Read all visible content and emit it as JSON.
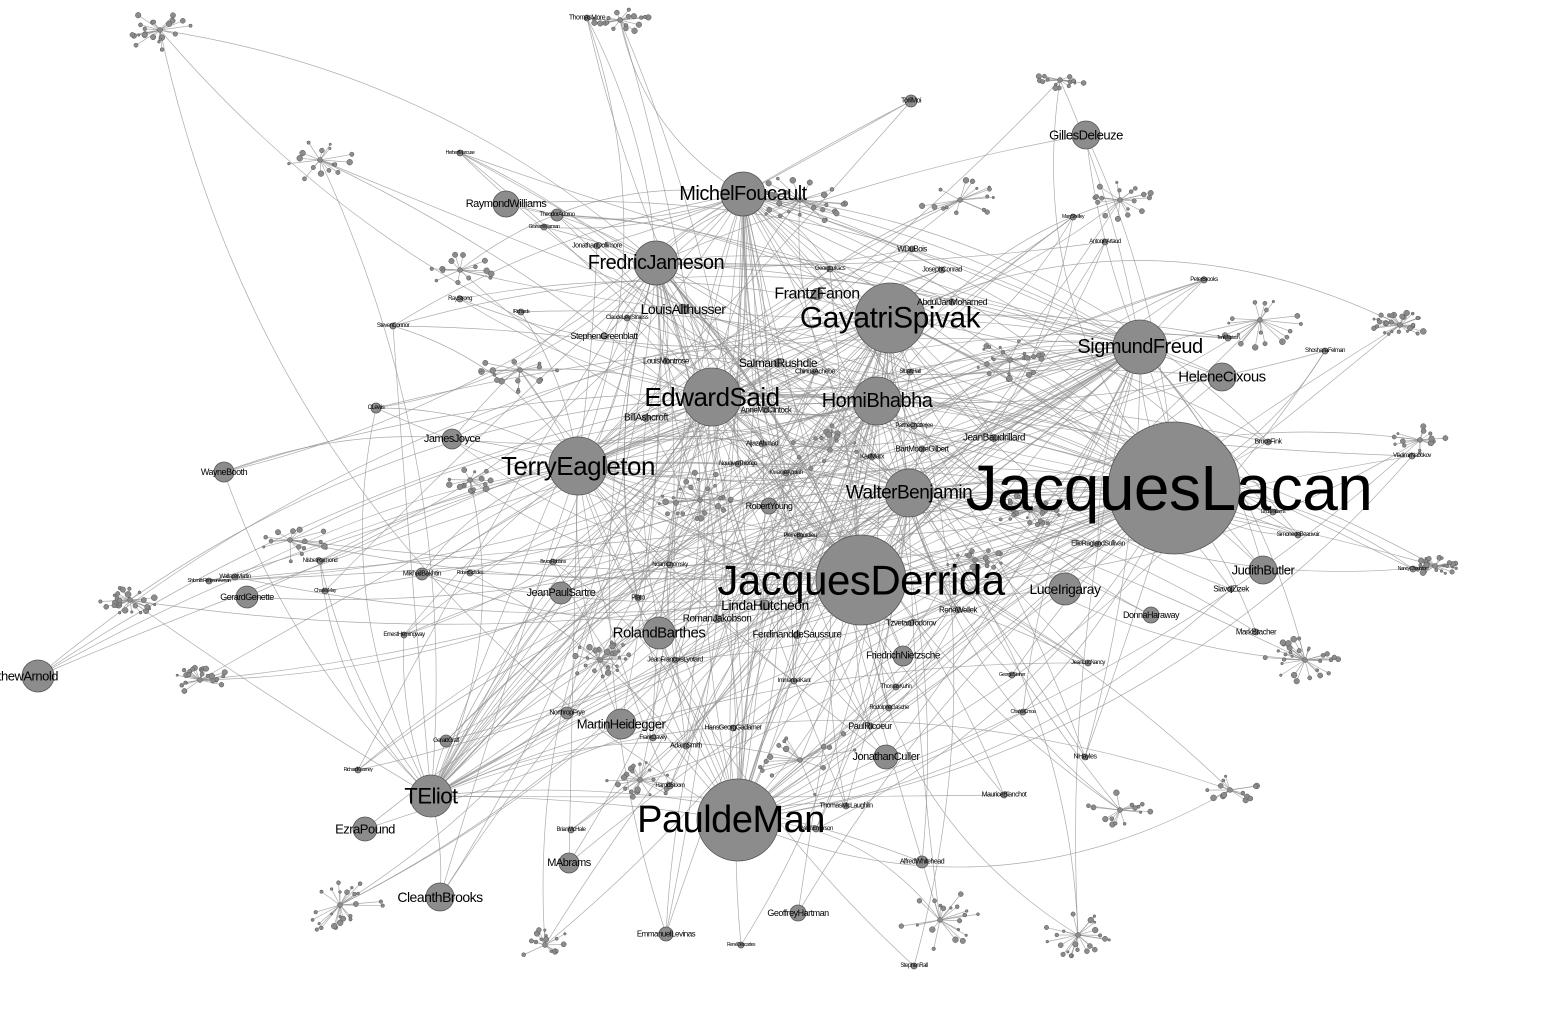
{
  "graph": {
    "colors": {
      "background": "#ffffff",
      "node_fill": "#8c8c8c",
      "node_stroke": "#555555",
      "edge": "#8f8f8f",
      "label": "#000000"
    },
    "nodes": [
      {
        "id": "lacan",
        "label": "JacquesLacan"
      },
      {
        "id": "derrida",
        "label": "JacquesDerrida"
      },
      {
        "id": "deman",
        "label": "PauldeMan"
      },
      {
        "id": "spivak",
        "label": "GayatriSpivak"
      },
      {
        "id": "said",
        "label": "EdwardSaid"
      },
      {
        "id": "eagleton",
        "label": "TerryEagleton"
      },
      {
        "id": "jameson",
        "label": "FredricJameson"
      },
      {
        "id": "foucault",
        "label": "MichelFoucault"
      },
      {
        "id": "freud",
        "label": "SigmundFreud"
      },
      {
        "id": "bhabha",
        "label": "HomiBhabha"
      },
      {
        "id": "benjamin",
        "label": "WalterBenjamin"
      },
      {
        "id": "eliot",
        "label": "TEliot"
      },
      {
        "id": "barthes",
        "label": "RolandBarthes"
      },
      {
        "id": "heidegger",
        "label": "MartinHeidegger"
      },
      {
        "id": "cixous",
        "label": "HeleneCixous"
      },
      {
        "id": "irigaray",
        "label": "LuceIrigaray"
      },
      {
        "id": "butler",
        "label": "JudithButler"
      },
      {
        "id": "deleuze",
        "label": "GillesDeleuze"
      },
      {
        "id": "williams",
        "label": "RaymondWilliams"
      },
      {
        "id": "arnold",
        "label": "atthewArnold"
      },
      {
        "id": "brooks",
        "label": "CleanthBrooks"
      },
      {
        "id": "pound",
        "label": "EzraPound"
      },
      {
        "id": "sartre",
        "label": "JeanPaulSartre"
      },
      {
        "id": "hutcheon",
        "label": "LindaHutcheon"
      },
      {
        "id": "saussure",
        "label": "FerdinanddeSaussure"
      },
      {
        "id": "nietzsche",
        "label": "FriedrichNietzsche"
      },
      {
        "id": "culler",
        "label": "JonathanCuller"
      },
      {
        "id": "fanon",
        "label": "FrantzFanon"
      },
      {
        "id": "althusser",
        "label": "LouisAlthusser"
      },
      {
        "id": "rushdie",
        "label": "SalmanRushdie"
      },
      {
        "id": "baudrillard",
        "label": "JeanBaudrillard"
      },
      {
        "id": "joyce",
        "label": "JamesJoyce"
      },
      {
        "id": "ashcroft",
        "label": "BillAshcroft"
      },
      {
        "id": "young",
        "label": "RobertYoung"
      },
      {
        "id": "abrams",
        "label": "MAbrams"
      },
      {
        "id": "hartman",
        "label": "GeoffreyHartman"
      },
      {
        "id": "levinas",
        "label": "EmmanuelLevinas"
      },
      {
        "id": "booth",
        "label": "WayneBooth"
      },
      {
        "id": "genette",
        "label": "GerardGenette"
      },
      {
        "id": "jakobson",
        "label": "RomanJakobson"
      },
      {
        "id": "haraway",
        "label": "DonnaHaraway"
      },
      {
        "id": "whitehead",
        "label": "AlfredWhitehead"
      },
      {
        "id": "graff",
        "label": "GeraldGraff"
      },
      {
        "id": "bakhtin",
        "label": "MikhailBakhtin"
      },
      {
        "id": "frye",
        "label": "NorthropFrye"
      },
      {
        "id": "adorno",
        "label": "TheodorAdorno"
      },
      {
        "id": "greenblatt",
        "label": "StephenGreenblatt"
      },
      {
        "id": "zizek",
        "label": "SlavojZizek"
      },
      {
        "id": "bracher",
        "label": "MarkBracher"
      },
      {
        "id": "ricoeur",
        "label": "PaulRicoeur"
      },
      {
        "id": "gadamer",
        "label": "HansGeorgGadamer"
      },
      {
        "id": "todorov",
        "label": "TzvetanTodorov"
      },
      {
        "id": "hemingway",
        "label": "ErnestHemingway"
      },
      {
        "id": "moi",
        "label": "TorilMoi"
      },
      {
        "id": "mohamed",
        "label": "AbdulJanMohamed"
      },
      {
        "id": "dubois",
        "label": "WDuBois"
      },
      {
        "id": "blanchot",
        "label": "MauriceBlanchot"
      },
      {
        "id": "lewis",
        "label": "CLewis"
      },
      {
        "id": "wellek",
        "label": "RenéWellek"
      },
      {
        "id": "conrad",
        "label": "JosephConrad"
      },
      {
        "id": "connor",
        "label": "StevenConnor"
      },
      {
        "id": "marcuse",
        "label": "HerbertMarcuse"
      },
      {
        "id": "kuhn",
        "label": "ThomasKuhn"
      },
      {
        "id": "lyotard",
        "label": "JeanFrancoisLyotard"
      },
      {
        "id": "chomsky",
        "label": "NoamChomsky"
      },
      {
        "id": "bloom",
        "label": "HaroldBloom"
      },
      {
        "id": "smith",
        "label": "AdamSmith"
      },
      {
        "id": "montrose",
        "label": "LouisMontrose"
      },
      {
        "id": "mclaughlin",
        "label": "ThomasMcLaughlin"
      },
      {
        "id": "emerson",
        "label": "RalphEmerson"
      },
      {
        "id": "sullivan",
        "label": "EllieRaglandSullivan"
      },
      {
        "id": "dollimore",
        "label": "JonathanDollimore"
      },
      {
        "id": "bhambra",
        "label": "BartMooreGilbert"
      },
      {
        "id": "mmarx",
        "label": "KarlMarx"
      },
      {
        "id": "achebe",
        "label": "ChinuaAchebe"
      },
      {
        "id": "mcclintock",
        "label": "AnneMcClintock"
      },
      {
        "id": "ahmad",
        "label": "AijazAhmad"
      },
      {
        "id": "ngugi",
        "label": "NgugiwaThiongo"
      },
      {
        "id": "appiah",
        "label": "KwameAppiah"
      },
      {
        "id": "bourdieu",
        "label": "PierreBourdieu"
      },
      {
        "id": "nancy",
        "label": "JeanLucNancy"
      },
      {
        "id": "peterbrooks",
        "label": "PeterBrooks"
      },
      {
        "id": "feldman",
        "label": "ShoshanaFelman"
      },
      {
        "id": "fink",
        "label": "BruceFink"
      },
      {
        "id": "nabokov",
        "label": "VladimirNabokov"
      },
      {
        "id": "beauvoir",
        "label": "SimonedeBeauvoir"
      },
      {
        "id": "moore",
        "label": "ThomasMore"
      },
      {
        "id": "artaud",
        "label": "AntoninArtaud"
      },
      {
        "id": "plato",
        "label": "Plato"
      },
      {
        "id": "kant",
        "label": "ImmanuelKant"
      },
      {
        "id": "lukacs",
        "label": "GeorgLukacs"
      },
      {
        "id": "rodolphe",
        "label": "RodolpheGasche"
      },
      {
        "id": "chatterjee",
        "label": "PartheChatterjee"
      },
      {
        "id": "hall",
        "label": "StuartHall"
      },
      {
        "id": "steiner",
        "label": "GeorgeSteiner"
      },
      {
        "id": "hayles",
        "label": "NHayles"
      },
      {
        "id": "richards",
        "label": "IRichards"
      },
      {
        "id": "rkearney",
        "label": "RichardKearney"
      },
      {
        "id": "ckomo",
        "label": "CharlesCmoa"
      },
      {
        "id": "duchamp",
        "label": "RenéDescartes"
      },
      {
        "id": "stephenall",
        "label": "StephenRall"
      },
      {
        "id": "schwartz",
        "label": "LindaWilliams"
      },
      {
        "id": "cheney",
        "label": "ClaudeLevíStrauss"
      },
      {
        "id": "lovelace",
        "label": "FrankDavey"
      },
      {
        "id": "wsaid",
        "label": "BruceRobbins"
      },
      {
        "id": "levi",
        "label": "RayStrong"
      },
      {
        "id": "mlauw",
        "label": "BrianMcHale"
      },
      {
        "id": "cbrooke",
        "label": "CharlesMay"
      },
      {
        "id": "gunew",
        "label": "GrahamWarman"
      },
      {
        "id": "mary",
        "label": "MaryShelley"
      },
      {
        "id": "bakur",
        "label": "RobertScholes"
      },
      {
        "id": "tmorr",
        "label": "ToniMorrison"
      },
      {
        "id": "ncah",
        "label": "NancyChodorow"
      },
      {
        "id": "wcp",
        "label": "WallaceMartin"
      },
      {
        "id": "nrab",
        "label": "NisbetRaimond"
      },
      {
        "id": "shm",
        "label": "ShlomithRimmonKenan"
      }
    ]
  }
}
